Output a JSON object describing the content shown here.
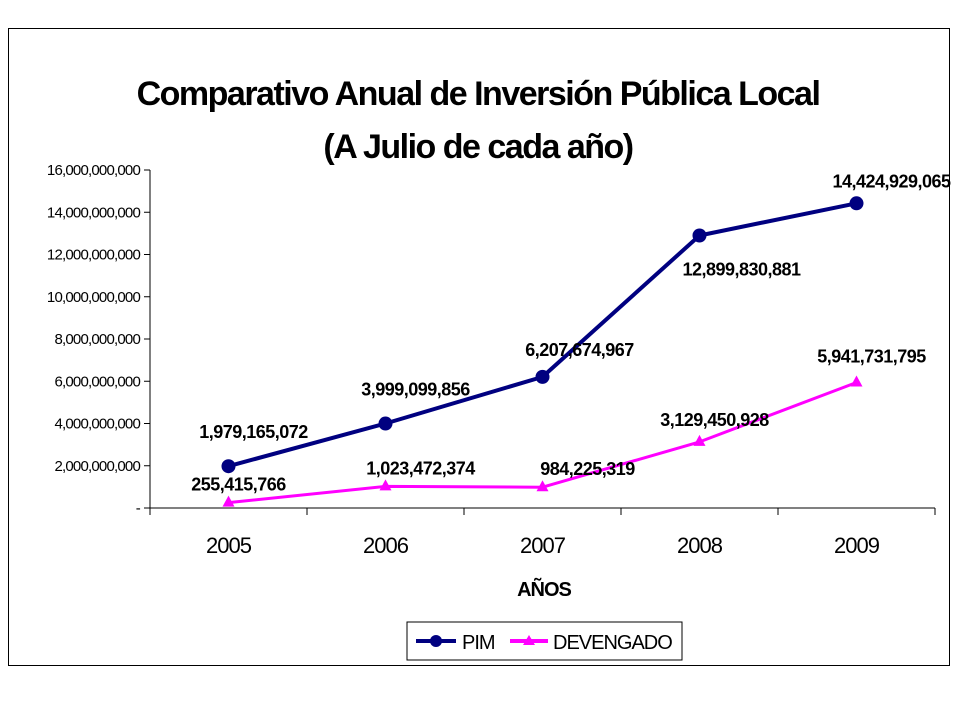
{
  "chart_data": {
    "type": "line",
    "title_line1": "Comparativo Anual de Inversión Pública Local",
    "title_line2": "(A Julio de cada año)",
    "xlabel": "AÑOS",
    "ylabel": "",
    "categories": [
      "2005",
      "2006",
      "2007",
      "2008",
      "2009"
    ],
    "ylim": [
      0,
      16000000000
    ],
    "y_ticks": [
      0,
      2000000000,
      4000000000,
      6000000000,
      8000000000,
      10000000000,
      12000000000,
      14000000000,
      16000000000
    ],
    "y_tick_labels": [
      "-",
      "2,000,000,000",
      "4,000,000,000",
      "6,000,000,000",
      "8,000,000,000",
      "10,000,000,000",
      "12,000,000,000",
      "14,000,000,000",
      "16,000,000,000"
    ],
    "grid": false,
    "legend_position": "bottom-right",
    "series": [
      {
        "name": "PIM",
        "color": "#000080",
        "marker": "circle",
        "values": [
          1979165072,
          3999099856,
          6207674967,
          12899830881,
          14424929065
        ],
        "labels": [
          "1,979,165,072",
          "3,999,099,856",
          "6,207,674,967",
          "12,899,830,881",
          "14,424,929,065"
        ]
      },
      {
        "name": "DEVENGADO",
        "color": "#ff00ff",
        "marker": "triangle",
        "values": [
          255415766,
          1023472374,
          984225319,
          3129450928,
          5941731795
        ],
        "labels": [
          "255,415,766",
          "1,023,472,374",
          "984,225,319",
          "3,129,450,928",
          "5,941,731,795"
        ]
      }
    ]
  }
}
